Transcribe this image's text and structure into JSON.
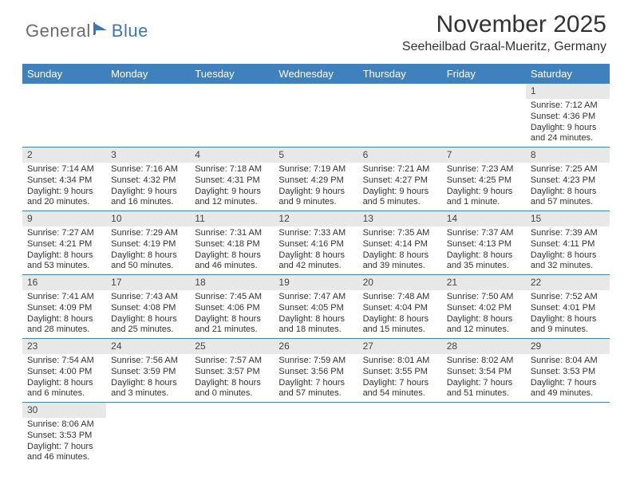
{
  "logo": {
    "part1": "General",
    "part2": "Blue"
  },
  "title": "November 2025",
  "location": "Seeheilbad Graal-Mueritz, Germany",
  "colors": {
    "header_bg": "#3e81bd",
    "header_text": "#ffffff",
    "daynum_bg": "#e8e8e8",
    "row_border": "#3e81bd",
    "logo_gray": "#6b6b6b",
    "logo_blue": "#3a78b5"
  },
  "day_headers": [
    "Sunday",
    "Monday",
    "Tuesday",
    "Wednesday",
    "Thursday",
    "Friday",
    "Saturday"
  ],
  "weeks": [
    [
      {
        "n": "",
        "lines": [
          "",
          "",
          "",
          ""
        ]
      },
      {
        "n": "",
        "lines": [
          "",
          "",
          "",
          ""
        ]
      },
      {
        "n": "",
        "lines": [
          "",
          "",
          "",
          ""
        ]
      },
      {
        "n": "",
        "lines": [
          "",
          "",
          "",
          ""
        ]
      },
      {
        "n": "",
        "lines": [
          "",
          "",
          "",
          ""
        ]
      },
      {
        "n": "",
        "lines": [
          "",
          "",
          "",
          ""
        ]
      },
      {
        "n": "1",
        "lines": [
          "Sunrise: 7:12 AM",
          "Sunset: 4:36 PM",
          "Daylight: 9 hours",
          "and 24 minutes."
        ]
      }
    ],
    [
      {
        "n": "2",
        "lines": [
          "Sunrise: 7:14 AM",
          "Sunset: 4:34 PM",
          "Daylight: 9 hours",
          "and 20 minutes."
        ]
      },
      {
        "n": "3",
        "lines": [
          "Sunrise: 7:16 AM",
          "Sunset: 4:32 PM",
          "Daylight: 9 hours",
          "and 16 minutes."
        ]
      },
      {
        "n": "4",
        "lines": [
          "Sunrise: 7:18 AM",
          "Sunset: 4:31 PM",
          "Daylight: 9 hours",
          "and 12 minutes."
        ]
      },
      {
        "n": "5",
        "lines": [
          "Sunrise: 7:19 AM",
          "Sunset: 4:29 PM",
          "Daylight: 9 hours",
          "and 9 minutes."
        ]
      },
      {
        "n": "6",
        "lines": [
          "Sunrise: 7:21 AM",
          "Sunset: 4:27 PM",
          "Daylight: 9 hours",
          "and 5 minutes."
        ]
      },
      {
        "n": "7",
        "lines": [
          "Sunrise: 7:23 AM",
          "Sunset: 4:25 PM",
          "Daylight: 9 hours",
          "and 1 minute."
        ]
      },
      {
        "n": "8",
        "lines": [
          "Sunrise: 7:25 AM",
          "Sunset: 4:23 PM",
          "Daylight: 8 hours",
          "and 57 minutes."
        ]
      }
    ],
    [
      {
        "n": "9",
        "lines": [
          "Sunrise: 7:27 AM",
          "Sunset: 4:21 PM",
          "Daylight: 8 hours",
          "and 53 minutes."
        ]
      },
      {
        "n": "10",
        "lines": [
          "Sunrise: 7:29 AM",
          "Sunset: 4:19 PM",
          "Daylight: 8 hours",
          "and 50 minutes."
        ]
      },
      {
        "n": "11",
        "lines": [
          "Sunrise: 7:31 AM",
          "Sunset: 4:18 PM",
          "Daylight: 8 hours",
          "and 46 minutes."
        ]
      },
      {
        "n": "12",
        "lines": [
          "Sunrise: 7:33 AM",
          "Sunset: 4:16 PM",
          "Daylight: 8 hours",
          "and 42 minutes."
        ]
      },
      {
        "n": "13",
        "lines": [
          "Sunrise: 7:35 AM",
          "Sunset: 4:14 PM",
          "Daylight: 8 hours",
          "and 39 minutes."
        ]
      },
      {
        "n": "14",
        "lines": [
          "Sunrise: 7:37 AM",
          "Sunset: 4:13 PM",
          "Daylight: 8 hours",
          "and 35 minutes."
        ]
      },
      {
        "n": "15",
        "lines": [
          "Sunrise: 7:39 AM",
          "Sunset: 4:11 PM",
          "Daylight: 8 hours",
          "and 32 minutes."
        ]
      }
    ],
    [
      {
        "n": "16",
        "lines": [
          "Sunrise: 7:41 AM",
          "Sunset: 4:09 PM",
          "Daylight: 8 hours",
          "and 28 minutes."
        ]
      },
      {
        "n": "17",
        "lines": [
          "Sunrise: 7:43 AM",
          "Sunset: 4:08 PM",
          "Daylight: 8 hours",
          "and 25 minutes."
        ]
      },
      {
        "n": "18",
        "lines": [
          "Sunrise: 7:45 AM",
          "Sunset: 4:06 PM",
          "Daylight: 8 hours",
          "and 21 minutes."
        ]
      },
      {
        "n": "19",
        "lines": [
          "Sunrise: 7:47 AM",
          "Sunset: 4:05 PM",
          "Daylight: 8 hours",
          "and 18 minutes."
        ]
      },
      {
        "n": "20",
        "lines": [
          "Sunrise: 7:48 AM",
          "Sunset: 4:04 PM",
          "Daylight: 8 hours",
          "and 15 minutes."
        ]
      },
      {
        "n": "21",
        "lines": [
          "Sunrise: 7:50 AM",
          "Sunset: 4:02 PM",
          "Daylight: 8 hours",
          "and 12 minutes."
        ]
      },
      {
        "n": "22",
        "lines": [
          "Sunrise: 7:52 AM",
          "Sunset: 4:01 PM",
          "Daylight: 8 hours",
          "and 9 minutes."
        ]
      }
    ],
    [
      {
        "n": "23",
        "lines": [
          "Sunrise: 7:54 AM",
          "Sunset: 4:00 PM",
          "Daylight: 8 hours",
          "and 6 minutes."
        ]
      },
      {
        "n": "24",
        "lines": [
          "Sunrise: 7:56 AM",
          "Sunset: 3:59 PM",
          "Daylight: 8 hours",
          "and 3 minutes."
        ]
      },
      {
        "n": "25",
        "lines": [
          "Sunrise: 7:57 AM",
          "Sunset: 3:57 PM",
          "Daylight: 8 hours",
          "and 0 minutes."
        ]
      },
      {
        "n": "26",
        "lines": [
          "Sunrise: 7:59 AM",
          "Sunset: 3:56 PM",
          "Daylight: 7 hours",
          "and 57 minutes."
        ]
      },
      {
        "n": "27",
        "lines": [
          "Sunrise: 8:01 AM",
          "Sunset: 3:55 PM",
          "Daylight: 7 hours",
          "and 54 minutes."
        ]
      },
      {
        "n": "28",
        "lines": [
          "Sunrise: 8:02 AM",
          "Sunset: 3:54 PM",
          "Daylight: 7 hours",
          "and 51 minutes."
        ]
      },
      {
        "n": "29",
        "lines": [
          "Sunrise: 8:04 AM",
          "Sunset: 3:53 PM",
          "Daylight: 7 hours",
          "and 49 minutes."
        ]
      }
    ],
    [
      {
        "n": "30",
        "lines": [
          "Sunrise: 8:06 AM",
          "Sunset: 3:53 PM",
          "Daylight: 7 hours",
          "and 46 minutes."
        ]
      },
      {
        "n": "",
        "lines": [
          "",
          "",
          "",
          ""
        ]
      },
      {
        "n": "",
        "lines": [
          "",
          "",
          "",
          ""
        ]
      },
      {
        "n": "",
        "lines": [
          "",
          "",
          "",
          ""
        ]
      },
      {
        "n": "",
        "lines": [
          "",
          "",
          "",
          ""
        ]
      },
      {
        "n": "",
        "lines": [
          "",
          "",
          "",
          ""
        ]
      },
      {
        "n": "",
        "lines": [
          "",
          "",
          "",
          ""
        ]
      }
    ]
  ]
}
